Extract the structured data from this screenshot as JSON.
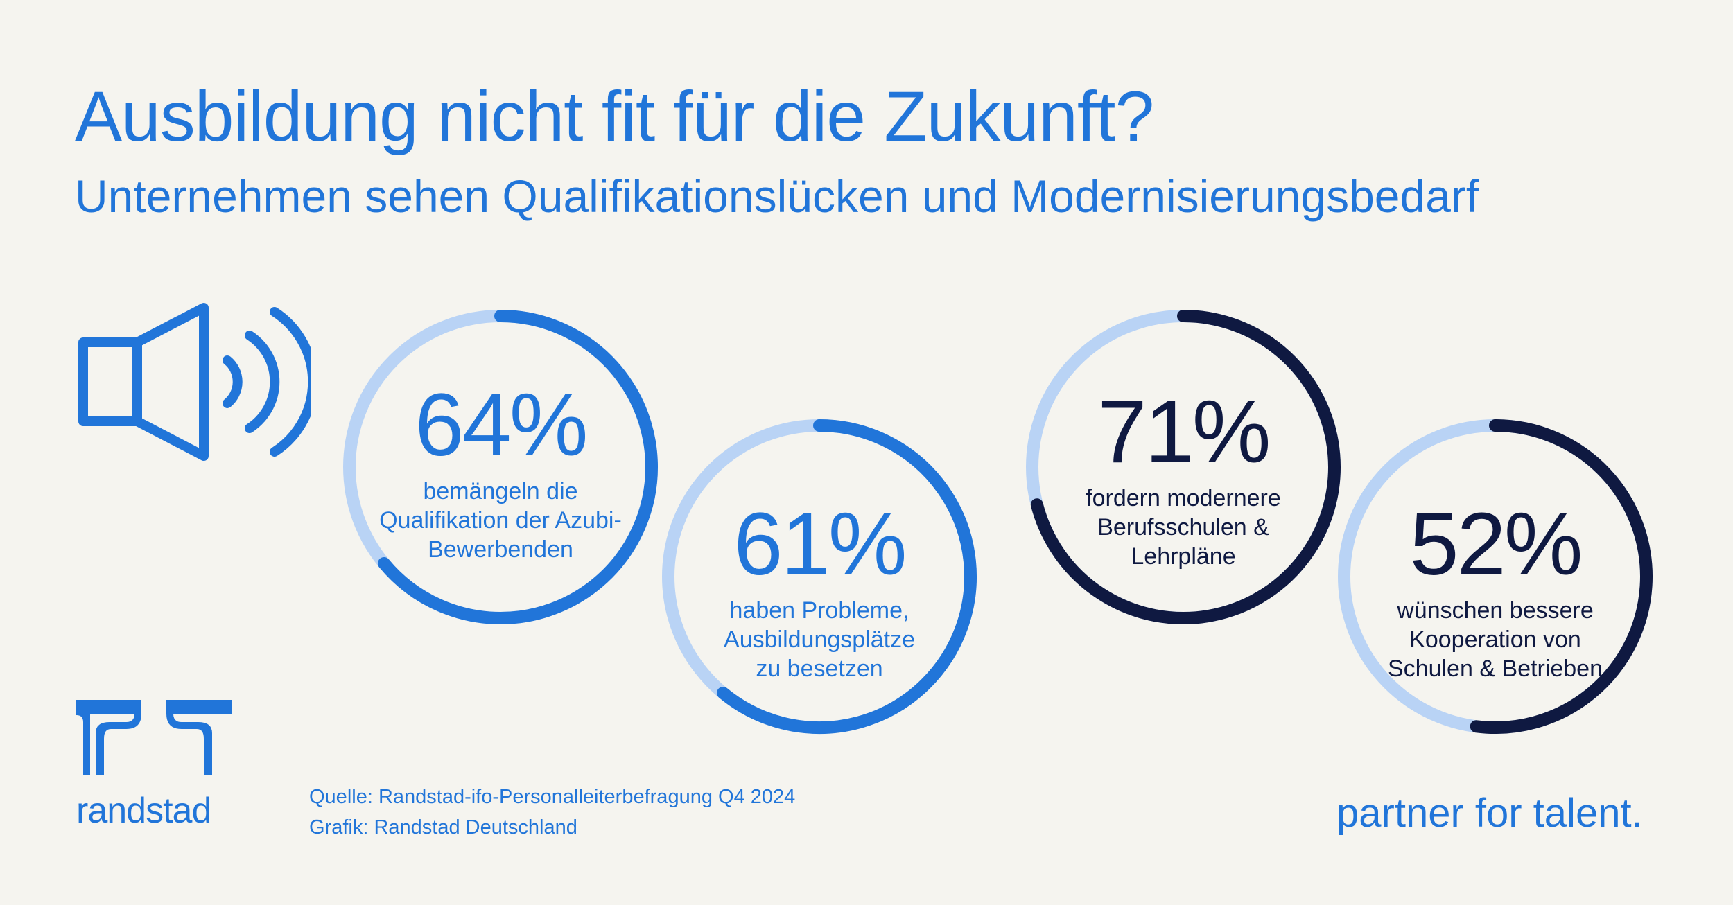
{
  "header": {
    "title": "Ausbildung nicht fit für die Zukunft?",
    "subtitle": "Unternehmen sehen Qualifikationslücken und Modernisierungsbedarf"
  },
  "chart_data": {
    "type": "donut",
    "track_color": "#b9d3f5",
    "series": [
      {
        "value": 64,
        "label": "64%",
        "description": [
          "bemängeln die",
          "Qualifikation der Azubi-",
          "Bewerbenden"
        ],
        "color": "#2175d9"
      },
      {
        "value": 61,
        "label": "61%",
        "description": [
          "haben Probleme,",
          "Ausbildungsplätze",
          "zu besetzen"
        ],
        "color": "#2175d9"
      },
      {
        "value": 71,
        "label": "71%",
        "description": [
          "fordern modernere",
          "Berufsschulen &",
          "Lehrpläne"
        ],
        "color": "#0f1941"
      },
      {
        "value": 52,
        "label": "52%",
        "description": [
          "wünschen bessere",
          "Kooperation von",
          "Schulen & Betrieben"
        ],
        "color": "#0f1941"
      }
    ]
  },
  "footer": {
    "logo_text": "randstad",
    "source_line": "Quelle: Randstad-ifo-Personalleiterbefragung Q4 2024",
    "graphic_line": "Grafik: Randstad Deutschland",
    "tagline": "partner for talent."
  },
  "icons": {
    "speaker": "speaker-icon",
    "logo": "randstad-logo-icon"
  }
}
